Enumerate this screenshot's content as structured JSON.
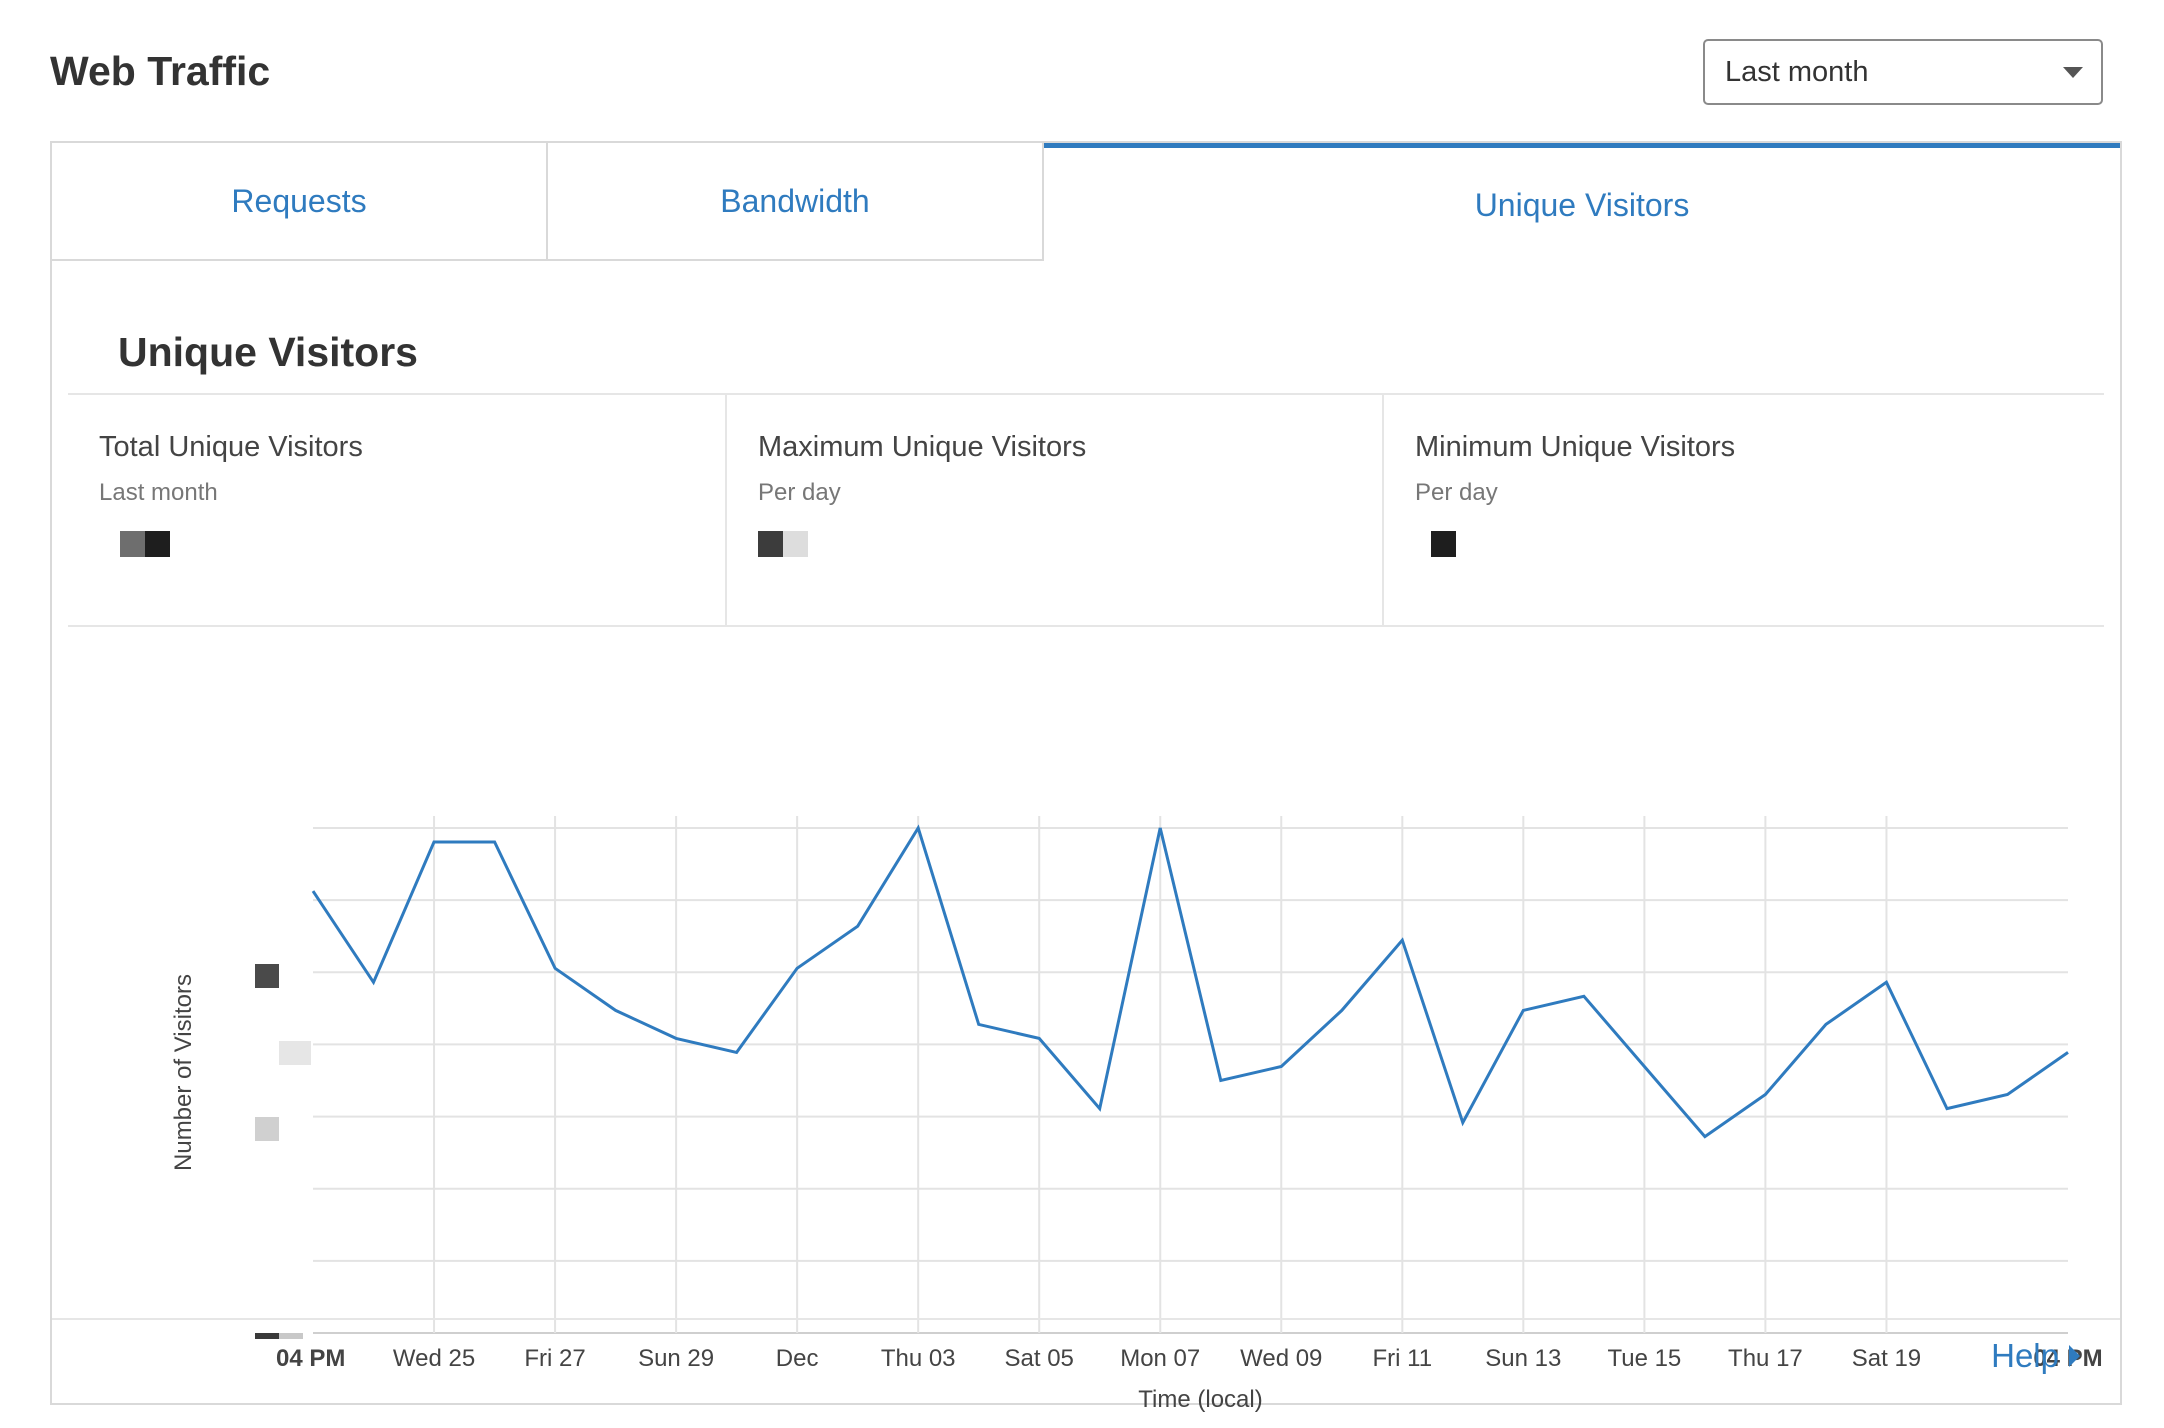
{
  "header": {
    "title": "Web Traffic"
  },
  "range_select": {
    "value": "Last month"
  },
  "tabs": [
    {
      "label": "Requests",
      "active": false
    },
    {
      "label": "Bandwidth",
      "active": false
    },
    {
      "label": "Unique Visitors",
      "active": true
    }
  ],
  "section": {
    "title": "Unique Visitors"
  },
  "stats": [
    {
      "label": "Total Unique Visitors",
      "sub": "Last month"
    },
    {
      "label": "Maximum Unique Visitors",
      "sub": "Per day"
    },
    {
      "label": "Minimum Unique Visitors",
      "sub": "Per day"
    }
  ],
  "chart_data": {
    "type": "line",
    "xlabel": "Time (local)",
    "ylabel": "Number of Visitors",
    "grid": true,
    "color": "#2f7bbf",
    "x": [
      "04 PM",
      "",
      "Wed 25",
      "",
      "Fri 27",
      "",
      "Sun 29",
      "",
      "Dec",
      "",
      "Thu 03",
      "",
      "Sat 05",
      "",
      "Mon 07",
      "",
      "Wed 09",
      "",
      "Fri 11",
      "",
      "Sun 13",
      "",
      "Tue 15",
      "",
      "Thu 17",
      "",
      "Sat 19",
      "",
      "",
      ""
    ],
    "x_tick_labels": [
      "04 PM",
      "Wed 25",
      "Fri 27",
      "Sun 29",
      "Dec",
      "Thu 03",
      "Sat 05",
      "Mon 07",
      "Wed 09",
      "Fri 11",
      "Sun 13",
      "Tue 15",
      "Thu 17",
      "Sat 19",
      "04 PM"
    ],
    "values": [
      6.3,
      5.0,
      7.0,
      7.0,
      5.2,
      4.6,
      4.2,
      4.0,
      5.2,
      5.8,
      7.2,
      4.4,
      4.2,
      3.2,
      7.2,
      3.6,
      3.8,
      4.6,
      5.6,
      3.0,
      4.6,
      4.8,
      3.8,
      2.8,
      3.4,
      4.4,
      5.0,
      3.2,
      3.4,
      4.0
    ],
    "ylim": [
      0,
      7.2
    ],
    "y_gridlines": 7
  },
  "footer": {
    "help_label": "Help"
  }
}
